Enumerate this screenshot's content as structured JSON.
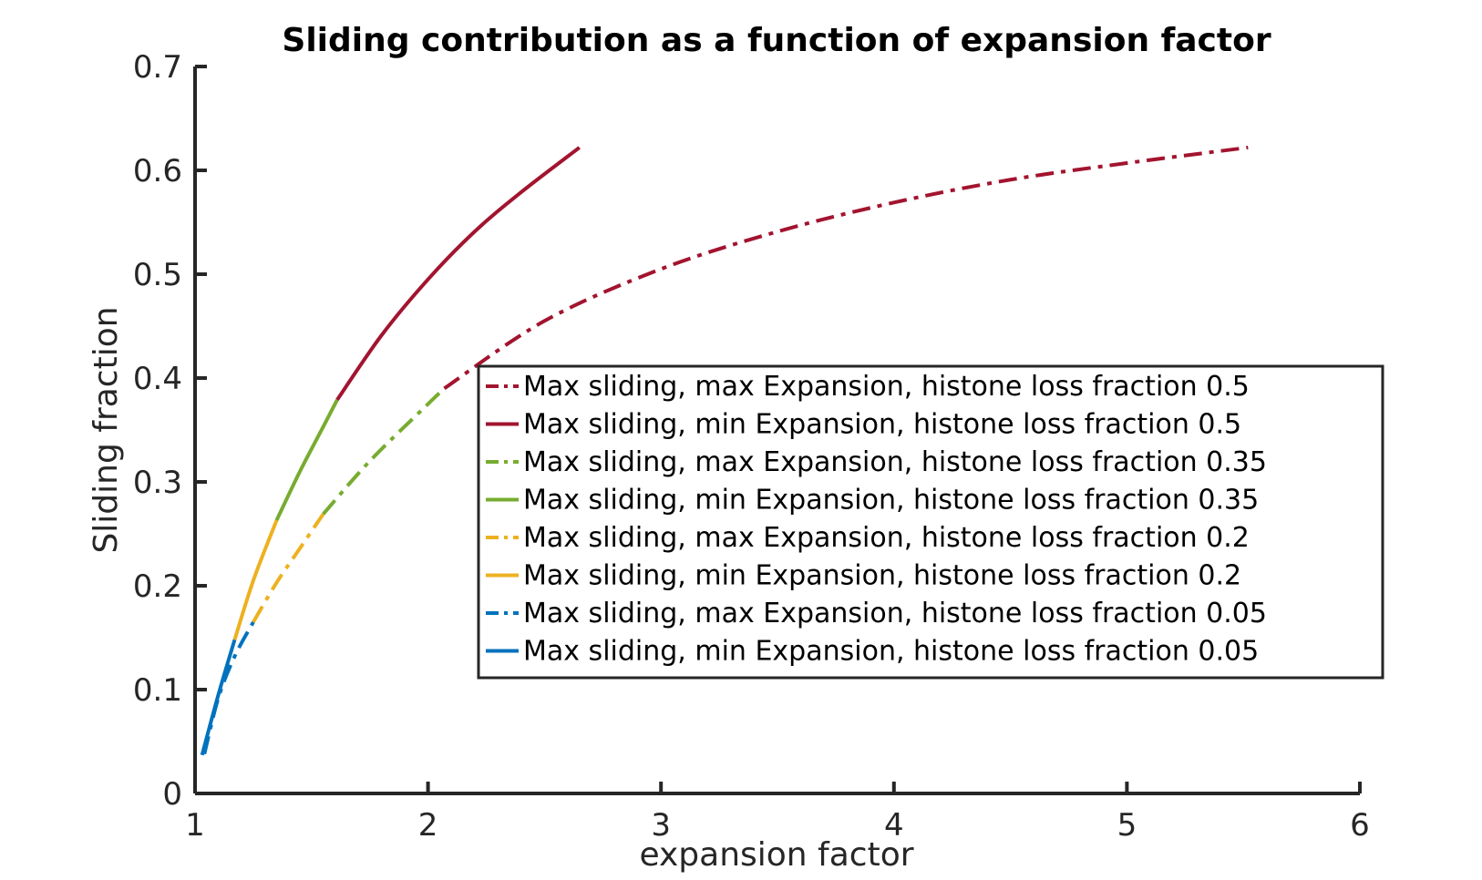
{
  "chart_data": {
    "type": "line",
    "title": "Sliding contribution as a function of expansion factor",
    "xlabel": "expansion factor",
    "ylabel": "Sliding fraction",
    "xlim": [
      1,
      6
    ],
    "ylim": [
      0,
      0.7
    ],
    "xticks": [
      1,
      2,
      3,
      4,
      5,
      6
    ],
    "yticks": [
      0,
      0.1,
      0.2,
      0.3,
      0.4,
      0.5,
      0.6,
      0.7
    ],
    "xtick_labels": [
      "1",
      "2",
      "3",
      "4",
      "5",
      "6"
    ],
    "ytick_labels": [
      "0",
      "0.1",
      "0.2",
      "0.3",
      "0.4",
      "0.5",
      "0.6",
      "0.7"
    ],
    "grid": false,
    "legend_position": "inside-right",
    "series": [
      {
        "name": "Max sliding, max Expansion, histone loss fraction 0.5",
        "color": "#A2142F",
        "dash": "dashdot",
        "x": [
          2.07,
          2.5,
          3.0,
          3.5,
          4.0,
          4.5,
          5.0,
          5.52
        ],
        "y": [
          0.39,
          0.455,
          0.505,
          0.541,
          0.569,
          0.591,
          0.607,
          0.622
        ]
      },
      {
        "name": "Max sliding, min Expansion, histone loss fraction 0.5",
        "color": "#A2142F",
        "dash": "solid",
        "x": [
          1.61,
          1.8,
          2.0,
          2.2,
          2.4,
          2.65
        ],
        "y": [
          0.379,
          0.441,
          0.495,
          0.541,
          0.579,
          0.622
        ]
      },
      {
        "name": "Max sliding, max Expansion, histone loss fraction 0.35",
        "color": "#77AC30",
        "dash": "dashdot",
        "x": [
          1.55,
          1.75,
          2.0,
          2.07
        ],
        "y": [
          0.269,
          0.32,
          0.375,
          0.39
        ]
      },
      {
        "name": "Max sliding, min Expansion, histone loss fraction 0.35",
        "color": "#77AC30",
        "dash": "solid",
        "x": [
          1.35,
          1.45,
          1.55,
          1.61
        ],
        "y": [
          0.263,
          0.31,
          0.353,
          0.379
        ]
      },
      {
        "name": "Max sliding, max Expansion, histone loss fraction 0.2",
        "color": "#EDB120",
        "dash": "dashdot",
        "x": [
          1.25,
          1.35,
          1.45,
          1.55
        ],
        "y": [
          0.165,
          0.203,
          0.236,
          0.269
        ]
      },
      {
        "name": "Max sliding, min Expansion, histone loss fraction 0.2",
        "color": "#EDB120",
        "dash": "solid",
        "x": [
          1.17,
          1.25,
          1.35
        ],
        "y": [
          0.148,
          0.205,
          0.263
        ]
      },
      {
        "name": "Max sliding, max Expansion, histone loss fraction 0.05",
        "color": "#0072BD",
        "dash": "dashdot",
        "x": [
          1.04,
          1.1,
          1.17,
          1.25
        ],
        "y": [
          0.038,
          0.092,
          0.132,
          0.165
        ]
      },
      {
        "name": "Max sliding, min Expansion, histone loss fraction 0.05",
        "color": "#0072BD",
        "dash": "solid",
        "x": [
          1.03,
          1.1,
          1.17
        ],
        "y": [
          0.037,
          0.095,
          0.148
        ]
      }
    ]
  }
}
